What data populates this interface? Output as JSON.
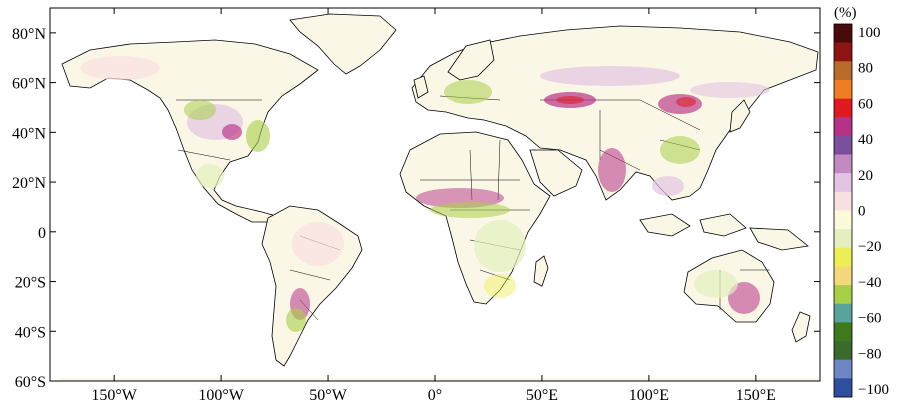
{
  "map": {
    "lat_ticks": [
      "80°N",
      "60°N",
      "40°N",
      "20°N",
      "0",
      "20°S",
      "40°S",
      "60°S"
    ],
    "lat_values": [
      80,
      60,
      40,
      20,
      0,
      -20,
      -40,
      -60
    ],
    "lon_ticks": [
      "150°W",
      "100°W",
      "50°W",
      "0°",
      "50°E",
      "100°E",
      "150°E"
    ],
    "lon_values": [
      -150,
      -100,
      -50,
      0,
      50,
      100,
      150
    ],
    "lon_range": [
      -180,
      180
    ],
    "lat_range": [
      -60,
      90
    ],
    "ocean_color": "#ffffff",
    "coastline_color": "#000000"
  },
  "colorbar": {
    "unit": "(%)",
    "tick_labels": [
      "100",
      "80",
      "60",
      "40",
      "20",
      "0",
      "−20",
      "−40",
      "−60",
      "−80",
      "−100"
    ],
    "levels_top_to_bottom": [
      "#4a0a0a",
      "#8e1414",
      "#b86c2a",
      "#ef7d22",
      "#e01a1f",
      "#b63286",
      "#7a4f9e",
      "#c28ac0",
      "#e3c4e3",
      "#f9e0e0",
      "#fbfbdc",
      "#e3efbe",
      "#eded55",
      "#f3d97c",
      "#a8cf48",
      "#5aa39a",
      "#3e7a1c",
      "#3a6a2c",
      "#6e87c4",
      "#2e4fa0"
    ]
  }
}
